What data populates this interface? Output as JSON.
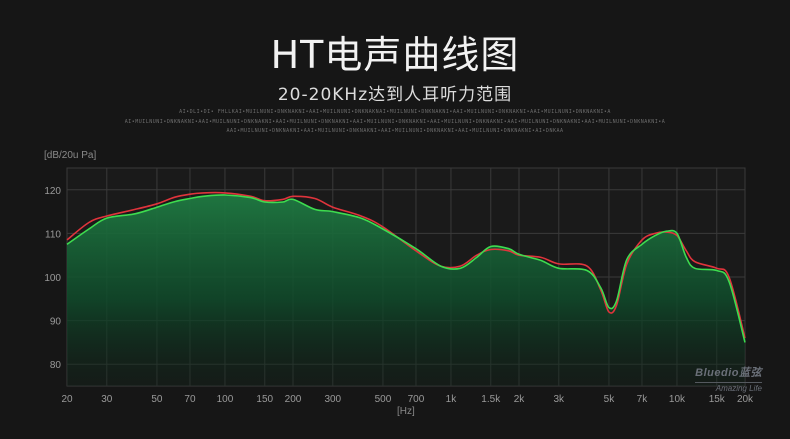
{
  "title": "HT电声曲线图",
  "subtitle": "20-20KHz达到人耳听力范围",
  "fine_print": [
    "AI•DLI•DI• FHLLKAI•MUILNUNI•DNKNAKNI•AAI•MUILNUNI•DNKNAKNAI•MUILNUNI•DNKNAKNI•AAI•MUILNUNI•DNKNAKNI•AAI•MUILNUNI•DNKNAKNI•A",
    "AI•MUILNUNI•DNKNAKNI•AAI•MUILNUNI•DNKNAKNI•AAI•MUILNUNI•DNKNAKNI•AAI•MUILNUNI•DNKNAKNI•AAI•MUILNUNI•DNKNAKNI•AAI•MUILNUNI•DNKNAKNI•AAI•MUILNUNI•DNKNAKNI•A",
    "AAI•MUILNUNI•DNKNAKNI•AAI•MUILNUNI•DNKNAKNI•AAI•MUILNUNI•DNKNAKNI•AAI•MUILNUNI•DNKNAKNI•AI•DNKAA"
  ],
  "brand": {
    "name": "Bluedio蓝弦",
    "tagline": "Amazing Life"
  },
  "colors": {
    "green": "#3ddc4f",
    "red": "#e0343c",
    "grid": "#3a3a3a",
    "background": "#161616"
  },
  "chart_data": {
    "type": "line",
    "ylabel": "[dB/20u Pa]",
    "xlabel": "[Hz]",
    "x_scale": "log",
    "xlim": [
      20,
      20000
    ],
    "ylim": [
      75,
      125
    ],
    "y_ticks": [
      80,
      90,
      100,
      110,
      120
    ],
    "x_ticks": [
      {
        "v": 20,
        "l": "20"
      },
      {
        "v": 30,
        "l": "30"
      },
      {
        "v": 50,
        "l": "50"
      },
      {
        "v": 70,
        "l": "70"
      },
      {
        "v": 100,
        "l": "100"
      },
      {
        "v": 150,
        "l": "150"
      },
      {
        "v": 200,
        "l": "200"
      },
      {
        "v": 300,
        "l": "300"
      },
      {
        "v": 500,
        "l": "500"
      },
      {
        "v": 700,
        "l": "700"
      },
      {
        "v": 1000,
        "l": "1k"
      },
      {
        "v": 1500,
        "l": "1.5k"
      },
      {
        "v": 2000,
        "l": "2k"
      },
      {
        "v": 3000,
        "l": "3k"
      },
      {
        "v": 5000,
        "l": "5k"
      },
      {
        "v": 7000,
        "l": "7k"
      },
      {
        "v": 10000,
        "l": "10k"
      },
      {
        "v": 15000,
        "l": "15k"
      },
      {
        "v": 20000,
        "l": "20k"
      }
    ],
    "grid": true,
    "series": [
      {
        "color": "red",
        "points": [
          [
            20,
            108.5
          ],
          [
            25,
            112.5
          ],
          [
            30,
            114
          ],
          [
            40,
            115.5
          ],
          [
            50,
            116.8
          ],
          [
            60,
            118.3
          ],
          [
            70,
            119
          ],
          [
            80,
            119.3
          ],
          [
            100,
            119.3
          ],
          [
            130,
            118.5
          ],
          [
            150,
            117.5
          ],
          [
            180,
            117.8
          ],
          [
            200,
            118.5
          ],
          [
            250,
            118
          ],
          [
            300,
            116
          ],
          [
            400,
            114
          ],
          [
            500,
            111.5
          ],
          [
            700,
            106
          ],
          [
            900,
            102.5
          ],
          [
            1100,
            102.5
          ],
          [
            1300,
            105
          ],
          [
            1500,
            106.3
          ],
          [
            1800,
            106
          ],
          [
            2000,
            105
          ],
          [
            2500,
            104.5
          ],
          [
            3000,
            103
          ],
          [
            4000,
            102.5
          ],
          [
            4600,
            97
          ],
          [
            5000,
            92
          ],
          [
            5400,
            93.5
          ],
          [
            6000,
            103
          ],
          [
            7000,
            108.5
          ],
          [
            8000,
            110
          ],
          [
            9000,
            110.3
          ],
          [
            10000,
            109.5
          ],
          [
            11000,
            106
          ],
          [
            12000,
            103.5
          ],
          [
            15000,
            102
          ],
          [
            17000,
            100
          ],
          [
            20000,
            86
          ]
        ]
      },
      {
        "color": "green",
        "points": [
          [
            20,
            107.5
          ],
          [
            25,
            111
          ],
          [
            30,
            113.5
          ],
          [
            40,
            114.5
          ],
          [
            50,
            116
          ],
          [
            60,
            117.3
          ],
          [
            70,
            118
          ],
          [
            80,
            118.5
          ],
          [
            100,
            118.8
          ],
          [
            130,
            118.2
          ],
          [
            150,
            117.2
          ],
          [
            180,
            117.2
          ],
          [
            200,
            117.8
          ],
          [
            250,
            115.5
          ],
          [
            300,
            115
          ],
          [
            400,
            113.5
          ],
          [
            500,
            111
          ],
          [
            700,
            106.5
          ],
          [
            900,
            102.5
          ],
          [
            1100,
            102
          ],
          [
            1300,
            104.5
          ],
          [
            1500,
            107
          ],
          [
            1800,
            106.5
          ],
          [
            2000,
            105.2
          ],
          [
            2500,
            103.8
          ],
          [
            3000,
            102
          ],
          [
            4000,
            101.5
          ],
          [
            4600,
            97.5
          ],
          [
            5000,
            93
          ],
          [
            5400,
            94.5
          ],
          [
            6000,
            104
          ],
          [
            7000,
            107.5
          ],
          [
            8000,
            109.5
          ],
          [
            9000,
            110.5
          ],
          [
            10000,
            110
          ],
          [
            11000,
            104.5
          ],
          [
            12000,
            102
          ],
          [
            15000,
            101.5
          ],
          [
            17000,
            99
          ],
          [
            20000,
            85
          ]
        ]
      }
    ]
  }
}
